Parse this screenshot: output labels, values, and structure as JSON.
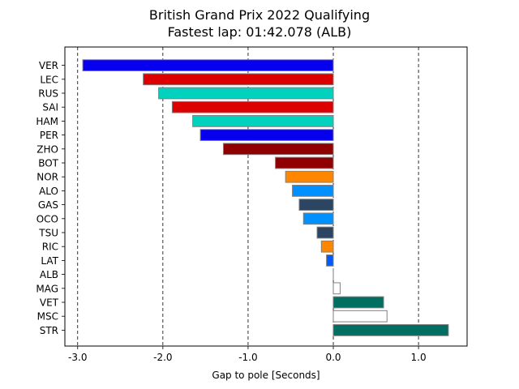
{
  "chart_data": {
    "type": "bar",
    "orientation": "horizontal",
    "title": "British Grand Prix 2022 Qualifying",
    "subtitle": "Fastest lap: 01:42.078 (ALB)",
    "xlabel": "Gap to pole [Seconds]",
    "ylabel": "",
    "xlim": [
      -3.15,
      1.57
    ],
    "xticks": [
      -3.0,
      -2.0,
      -1.0,
      0.0,
      1.0
    ],
    "xtick_labels": [
      "-3.0",
      "-2.0",
      "-1.0",
      "0.0",
      "1.0"
    ],
    "grid": "vertical dashed at x ticks",
    "legend": "none",
    "categories": [
      "VER",
      "LEC",
      "RUS",
      "SAI",
      "HAM",
      "PER",
      "ZHO",
      "BOT",
      "NOR",
      "ALO",
      "GAS",
      "OCO",
      "TSU",
      "RIC",
      "LAT",
      "ALB",
      "MAG",
      "VET",
      "MSC",
      "STR"
    ],
    "values": [
      -2.94,
      -2.23,
      -2.05,
      -1.89,
      -1.65,
      -1.56,
      -1.29,
      -0.68,
      -0.56,
      -0.48,
      -0.4,
      -0.35,
      -0.19,
      -0.14,
      -0.08,
      0.0,
      0.08,
      0.59,
      0.63,
      1.35
    ],
    "colors": [
      "#0600ef",
      "#dc0000",
      "#00d2be",
      "#dc0000",
      "#00d2be",
      "#0600ef",
      "#900000",
      "#900000",
      "#ff8700",
      "#0090ff",
      "#2b4562",
      "#0090ff",
      "#2b4562",
      "#ff8700",
      "#005aff",
      "#ffffff",
      "#ffffff",
      "#006f62",
      "#ffffff",
      "#006f62"
    ],
    "edge_color": "#808080"
  }
}
